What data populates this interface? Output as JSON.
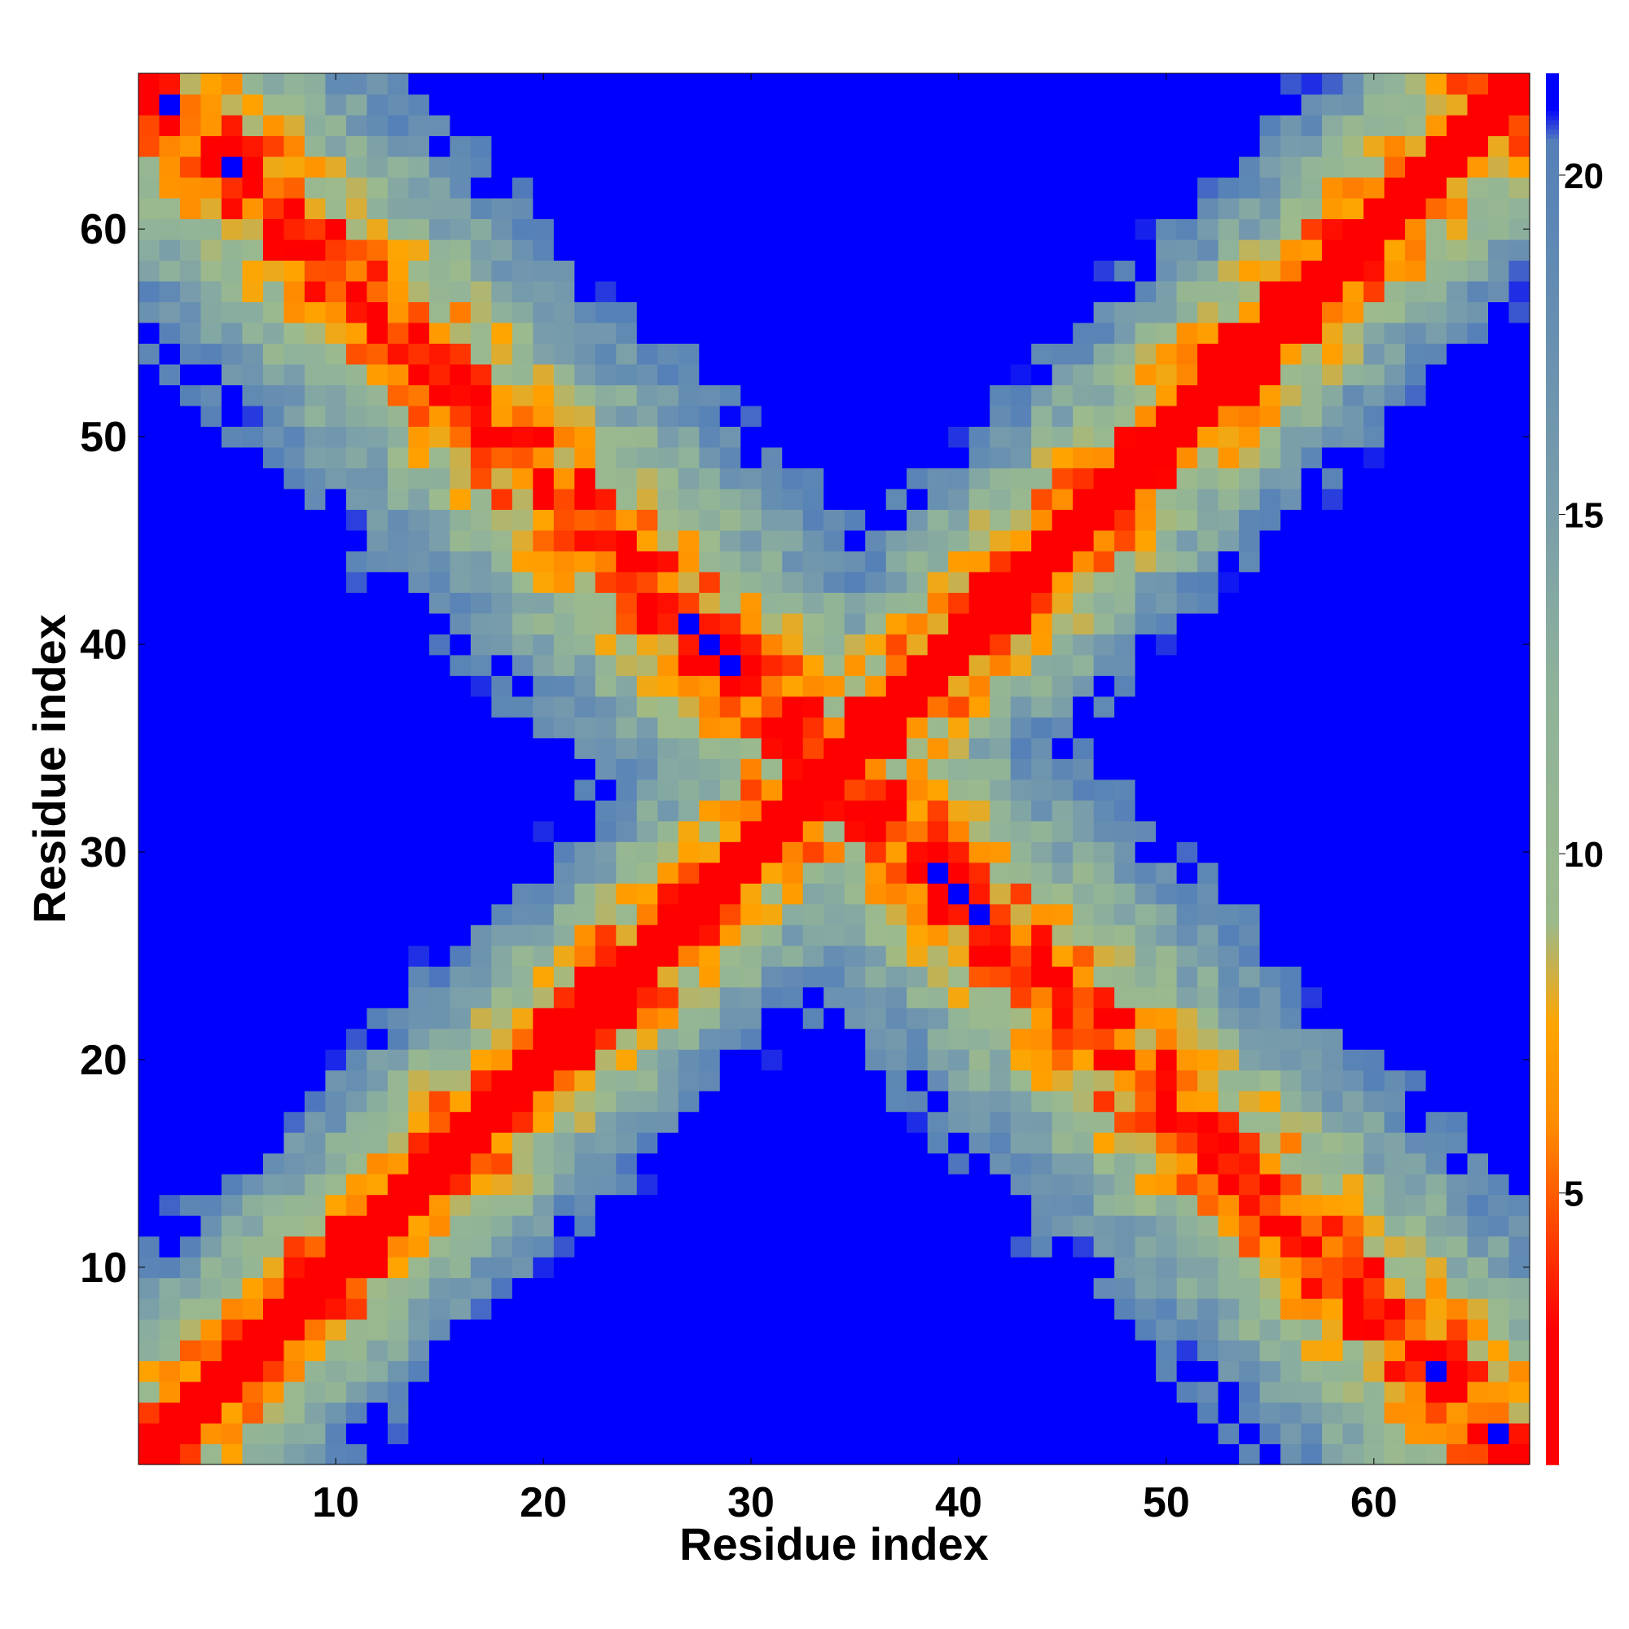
{
  "chart_data": {
    "type": "heatmap",
    "title": "",
    "xlabel": "Residue index",
    "ylabel": "Residue index",
    "n_residues": 67,
    "x_range": [
      1,
      67
    ],
    "y_range": [
      1,
      67
    ],
    "x_ticks": [
      10,
      20,
      30,
      40,
      50,
      60
    ],
    "y_ticks": [
      10,
      20,
      30,
      40,
      50,
      60
    ],
    "colorbar": {
      "range": [
        1,
        21.5
      ],
      "ticks": [
        5,
        10,
        15,
        20
      ],
      "stops": [
        {
          "value": 1.0,
          "color": "#ff0000"
        },
        {
          "value": 3.0,
          "color": "#ff0000"
        },
        {
          "value": 4.5,
          "color": "#ff4500"
        },
        {
          "value": 6.0,
          "color": "#ff8c00"
        },
        {
          "value": 7.5,
          "color": "#ffa500"
        },
        {
          "value": 9.0,
          "color": "#9cba8c"
        },
        {
          "value": 12.5,
          "color": "#8fb29a"
        },
        {
          "value": 15.0,
          "color": "#7a9eaa"
        },
        {
          "value": 20.5,
          "color": "#5580b8"
        },
        {
          "value": 21.0,
          "color": "#0000ff"
        },
        {
          "value": 21.5,
          "color": "#0000ff"
        }
      ],
      "cutoff": 21
    },
    "grid": false,
    "legend": "colorbar-right",
    "description_of_values": "Pairwise residue distance matrix (67x67), symmetric about both diagonals; values above cutoff shown as blue."
  }
}
